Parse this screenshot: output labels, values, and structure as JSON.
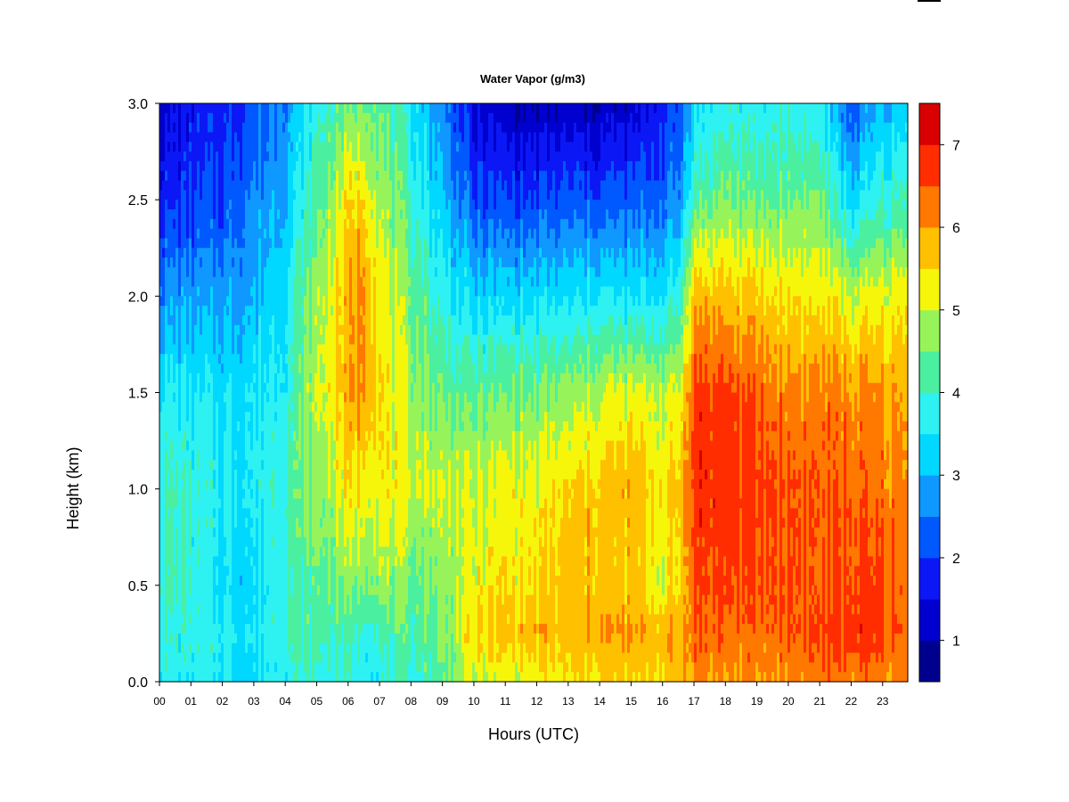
{
  "chart_data": {
    "type": "heatmap",
    "title": "Water Vapor (g/m3)",
    "xlabel": "Hours (UTC)",
    "ylabel": "Height (km)",
    "xlim": [
      0,
      23.8
    ],
    "ylim": [
      0,
      3.0
    ],
    "x_ticks": [
      "00",
      "01",
      "02",
      "03",
      "04",
      "05",
      "06",
      "07",
      "08",
      "09",
      "10",
      "11",
      "12",
      "13",
      "14",
      "15",
      "16",
      "17",
      "18",
      "19",
      "20",
      "21",
      "22",
      "23"
    ],
    "y_ticks": [
      "0.0",
      "0.5",
      "1.0",
      "1.5",
      "2.0",
      "2.5",
      "3.0"
    ],
    "y_tick_values": [
      0.0,
      0.5,
      1.0,
      1.5,
      2.0,
      2.5,
      3.0
    ],
    "colorbar": {
      "range": [
        0.5,
        7.5
      ],
      "levels": [
        0.5,
        1.0,
        1.5,
        2.0,
        2.5,
        3.0,
        3.5,
        4.0,
        4.5,
        5.0,
        5.5,
        6.0,
        6.5,
        7.0,
        7.5
      ],
      "colors": [
        "#00008f",
        "#0000cf",
        "#0b18f5",
        "#0058ff",
        "#0f98ff",
        "#00d8ff",
        "#2ef2f2",
        "#4af0a0",
        "#96f45a",
        "#f6f60a",
        "#ffc000",
        "#ff7800",
        "#ff2d00",
        "#d80000",
        "#8a0000"
      ],
      "ticks": [
        "1",
        "2",
        "3",
        "4",
        "5",
        "6",
        "7"
      ],
      "tick_values": [
        1,
        2,
        3,
        4,
        5,
        6,
        7
      ]
    },
    "profiles": {
      "heights_km": [
        0.0,
        0.25,
        0.5,
        1.0,
        1.5,
        2.0,
        2.5,
        3.0
      ],
      "times_h": [
        0,
        1,
        2,
        3,
        4,
        5,
        6,
        6.5,
        7,
        8,
        9,
        10,
        11,
        12,
        13,
        14,
        15,
        16,
        16.5,
        17,
        18,
        19,
        20,
        21,
        22,
        23,
        23.8
      ],
      "values": [
        [
          3.8,
          3.9,
          4.2,
          4.0,
          3.6,
          2.7,
          1.8,
          1.3
        ],
        [
          3.6,
          3.8,
          3.8,
          3.9,
          3.5,
          2.8,
          1.9,
          1.6
        ],
        [
          3.6,
          3.7,
          3.4,
          3.6,
          3.4,
          2.8,
          2.1,
          1.8
        ],
        [
          3.3,
          3.5,
          3.3,
          3.6,
          3.5,
          3.0,
          2.6,
          2.1
        ],
        [
          3.8,
          4.1,
          4.0,
          4.2,
          3.8,
          3.6,
          3.1,
          2.7
        ],
        [
          3.8,
          4.2,
          4.3,
          4.6,
          5.0,
          4.8,
          4.2,
          3.8
        ],
        [
          3.8,
          4.1,
          4.6,
          5.3,
          5.8,
          5.8,
          5.4,
          4.4
        ],
        [
          3.6,
          4.0,
          4.7,
          5.4,
          6.3,
          6.2,
          5.6,
          4.6
        ],
        [
          3.8,
          4.1,
          4.8,
          5.3,
          5.5,
          5.3,
          4.9,
          4.4
        ],
        [
          3.9,
          4.2,
          4.4,
          5.1,
          4.8,
          4.5,
          4.0,
          3.6
        ],
        [
          4.3,
          4.5,
          4.6,
          5.0,
          4.4,
          3.8,
          3.1,
          2.6
        ],
        [
          5.0,
          5.5,
          5.2,
          5.0,
          4.3,
          3.2,
          2.1,
          1.4
        ],
        [
          5.0,
          5.7,
          5.4,
          5.2,
          4.5,
          3.3,
          2.0,
          1.1
        ],
        [
          5.2,
          5.8,
          5.4,
          5.2,
          4.5,
          3.3,
          2.0,
          1.0
        ],
        [
          5.3,
          5.7,
          5.7,
          5.5,
          4.6,
          3.4,
          2.2,
          1.0
        ],
        [
          5.5,
          6.0,
          5.8,
          5.7,
          5.0,
          3.5,
          2.1,
          1.1
        ],
        [
          5.4,
          5.9,
          5.6,
          5.8,
          5.1,
          3.4,
          2.2,
          1.2
        ],
        [
          5.6,
          5.9,
          5.2,
          5.4,
          5.0,
          3.5,
          2.4,
          1.8
        ],
        [
          5.7,
          5.9,
          5.4,
          5.6,
          5.1,
          3.8,
          2.6,
          2.0
        ],
        [
          6.2,
          6.4,
          6.6,
          6.8,
          6.7,
          5.8,
          4.2,
          3.3
        ],
        [
          6.0,
          6.4,
          6.6,
          6.8,
          6.7,
          5.7,
          4.6,
          3.8
        ],
        [
          6.0,
          6.3,
          6.5,
          6.6,
          6.4,
          5.6,
          4.3,
          3.6
        ],
        [
          6.1,
          6.5,
          6.6,
          6.6,
          6.2,
          5.4,
          4.5,
          3.8
        ],
        [
          6.2,
          6.6,
          6.4,
          6.4,
          6.2,
          5.4,
          4.5,
          3.6
        ],
        [
          6.2,
          6.8,
          6.6,
          6.4,
          6.1,
          5.0,
          3.3,
          2.2
        ],
        [
          6.1,
          6.6,
          6.5,
          6.3,
          6.0,
          5.2,
          3.9,
          3.0
        ],
        [
          5.9,
          6.3,
          6.3,
          6.1,
          5.8,
          5.3,
          4.0,
          3.2
        ]
      ]
    }
  }
}
